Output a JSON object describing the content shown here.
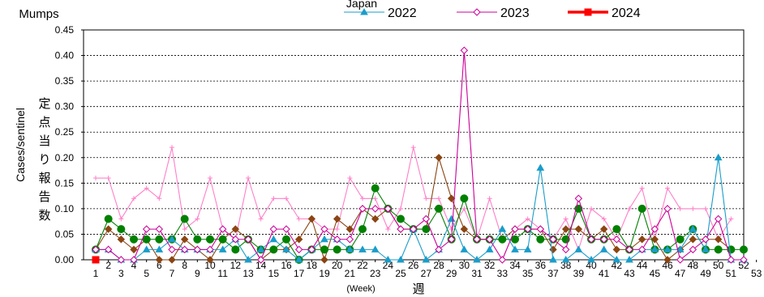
{
  "chart_data": {
    "type": "line",
    "title": "Mumps",
    "subtitle": "Japan",
    "ylabel": "Cases/sentinel",
    "ylabel_ja": "定点当り報告数",
    "xlabel_ja": "週",
    "xlabel_en": "(Week)",
    "ylim": [
      0,
      0.45
    ],
    "yticks": [
      "0.00",
      "0.05",
      "0.10",
      "0.15",
      "0.20",
      "0.25",
      "0.30",
      "0.35",
      "0.40",
      "0.45"
    ],
    "xticks_bottom": [
      "1",
      "3",
      "5",
      "7",
      "9",
      "11",
      "13",
      "15",
      "17",
      "19",
      "21",
      "23",
      "25",
      "27",
      "29",
      "31",
      "33",
      "35",
      "37",
      "39",
      "41",
      "43",
      "45",
      "47",
      "49",
      "51",
      "53"
    ],
    "xticks_top": [
      "2",
      "4",
      "6",
      "8",
      "10",
      "12",
      "14",
      "16",
      "18",
      "20",
      "22",
      "24",
      "26",
      "28",
      "30",
      "32",
      "34",
      "36",
      "38",
      "40",
      "42",
      "44",
      "46",
      "48",
      "50",
      "52"
    ],
    "grid": "horizontal-dotted",
    "legend_position": "top",
    "series": [
      {
        "name": "",
        "color": "#ff80c8",
        "marker": "plus",
        "legend": false,
        "values": [
          0.16,
          0.16,
          0.08,
          0.12,
          0.14,
          0.12,
          0.22,
          0.06,
          0.08,
          0.16,
          0.06,
          0.04,
          0.16,
          0.08,
          0.12,
          0.12,
          0.08,
          0.08,
          0.06,
          0.06,
          0.16,
          0.12,
          0.12,
          0.06,
          0.1,
          0.22,
          0.12,
          0.12,
          0.06,
          0.1,
          0.04,
          0.12,
          0.04,
          0.06,
          0.08,
          0.06,
          0.04,
          0.08,
          0.02,
          0.1,
          0.08,
          0.04,
          0.1,
          0.14,
          0.04,
          0.14,
          0.1,
          0.1,
          0.1,
          0.04,
          0.08
        ]
      },
      {
        "name": "",
        "color": "#8b4513",
        "marker": "diamond-filled",
        "legend": false,
        "values": [
          0.02,
          0.06,
          0.04,
          0.02,
          0.04,
          0.0,
          0.0,
          0.04,
          0.02,
          0.0,
          0.04,
          0.06,
          0.04,
          0.0,
          0.02,
          0.02,
          0.04,
          0.08,
          0.0,
          0.08,
          0.06,
          0.1,
          0.08,
          0.1,
          0.06,
          0.06,
          0.06,
          0.2,
          0.12,
          0.06,
          0.04,
          0.04,
          0.04,
          0.06,
          0.06,
          0.06,
          0.02,
          0.06,
          0.06,
          0.04,
          0.06,
          0.02,
          0.02,
          0.04,
          0.04,
          0.0,
          0.02,
          0.04,
          0.04,
          0.04,
          0.02
        ]
      },
      {
        "name": "",
        "color": "#008000",
        "marker": "circle-filled",
        "legend": false,
        "values": [
          0.02,
          0.08,
          0.06,
          0.04,
          0.04,
          0.04,
          0.04,
          0.08,
          0.04,
          0.04,
          0.04,
          0.02,
          0.04,
          0.02,
          0.02,
          0.04,
          0.0,
          0.02,
          0.02,
          0.02,
          0.02,
          0.06,
          0.14,
          0.1,
          0.08,
          0.06,
          0.06,
          0.1,
          0.04,
          0.12,
          0.04,
          0.04,
          0.04,
          0.04,
          0.06,
          0.04,
          0.04,
          0.04,
          0.1,
          0.04,
          0.04,
          0.06,
          0.02,
          0.1,
          0.02,
          0.02,
          0.04,
          0.06,
          0.02,
          0.02,
          0.02,
          0.02
        ]
      },
      {
        "name": "2022",
        "color": "#1a9dc9",
        "marker": "triangle",
        "legend": true,
        "values": [
          0.02,
          0.02,
          0.0,
          0.0,
          0.02,
          0.02,
          0.04,
          0.02,
          0.02,
          0.02,
          0.02,
          0.04,
          0.0,
          0.02,
          0.04,
          0.02,
          0.0,
          0.02,
          0.04,
          0.04,
          0.02,
          0.02,
          0.02,
          0.0,
          0.0,
          0.06,
          0.0,
          0.02,
          0.08,
          0.02,
          0.0,
          0.02,
          0.06,
          0.02,
          0.02,
          0.18,
          0.0,
          0.0,
          0.02,
          0.0,
          0.02,
          0.0,
          0.0,
          0.02,
          0.02,
          0.02,
          0.02,
          0.06,
          0.02,
          0.2,
          0.0,
          0.0
        ]
      },
      {
        "name": "2023",
        "color": "#cc0099",
        "marker": "diamond-open",
        "legend": true,
        "values": [
          0.02,
          0.02,
          0.0,
          0.0,
          0.06,
          0.06,
          0.02,
          0.02,
          0.02,
          0.02,
          0.06,
          0.04,
          0.04,
          0.0,
          0.06,
          0.06,
          0.02,
          0.02,
          0.06,
          0.04,
          0.04,
          0.1,
          0.1,
          0.1,
          0.06,
          0.06,
          0.08,
          0.02,
          0.04,
          0.41,
          0.04,
          0.04,
          0.0,
          0.06,
          0.06,
          0.06,
          0.04,
          0.02,
          0.12,
          0.04,
          0.04,
          0.04,
          0.02,
          0.02,
          0.06,
          0.1,
          0.0,
          0.02,
          0.04,
          0.08,
          0.0,
          0.0
        ]
      },
      {
        "name": "2024",
        "color": "#ff0000",
        "marker": "square-filled",
        "legend": true,
        "values": [
          0.0
        ]
      }
    ]
  }
}
